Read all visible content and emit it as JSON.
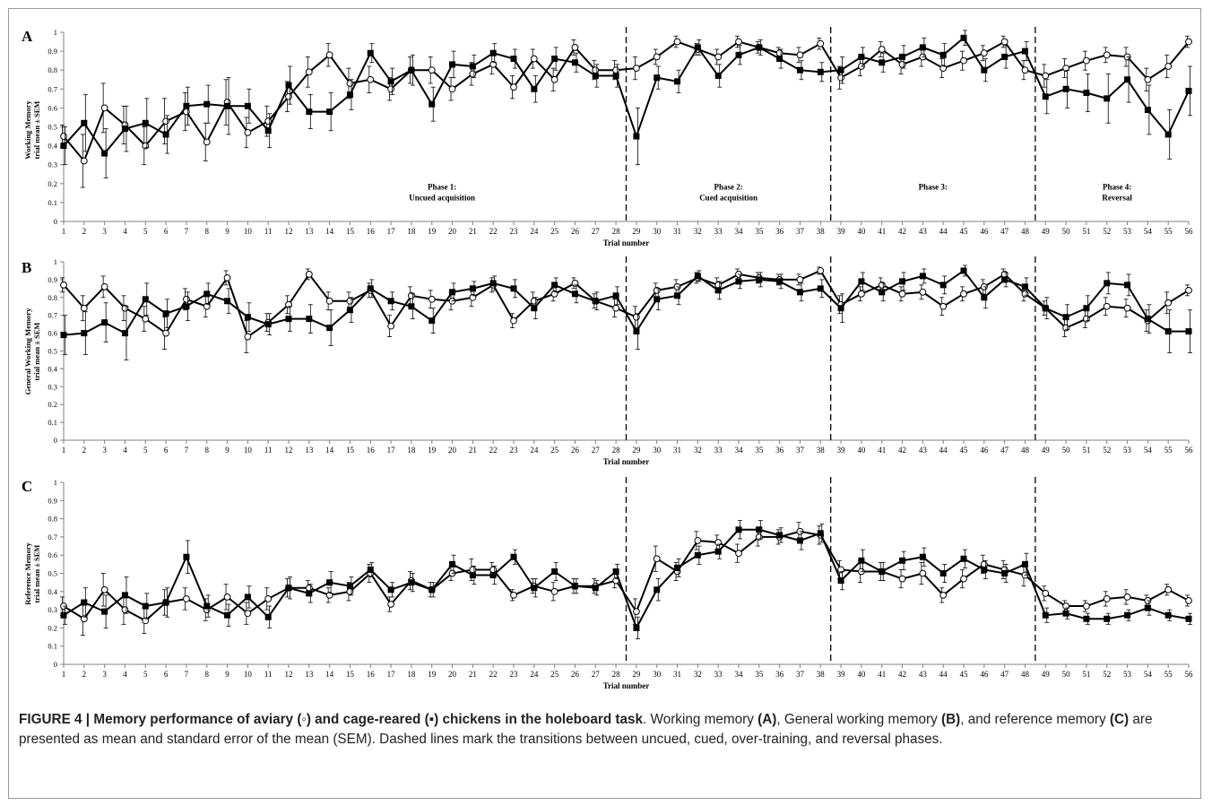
{
  "caption": {
    "figure_label": "FIGURE 4 | Memory performance of aviary (◦) and cage-reared (▪) chickens in the holeboard task",
    "t1": ". Working memory ",
    "r1": "(A)",
    "t2": ", General working memory ",
    "r2": "(B)",
    "t3": ", and reference memory ",
    "r3": "(C)",
    "t4": " are presented as mean and standard error of the mean (SEM). Dashed lines mark the transitions between uncued, cued, over-training, and reversal phases."
  },
  "colors": {
    "lines": "#000000",
    "axis": "#808080",
    "open_marker_fill": "#ffffff",
    "frame": "#9a9a9a"
  },
  "chart_data": [
    {
      "type": "line",
      "panel": "A",
      "ylabel_lines": [
        "Working Memory",
        "trial mean ± SEM"
      ],
      "xlabel": "Trial number",
      "ylim": [
        0,
        1
      ],
      "yticks": [
        "0",
        "0.1",
        "0.2",
        "0.3",
        "0.4",
        "0.5",
        "0.6",
        "0.7",
        "0.8",
        "0.9",
        "1"
      ],
      "x": [
        1,
        2,
        3,
        4,
        5,
        6,
        7,
        8,
        9,
        10,
        11,
        12,
        13,
        14,
        15,
        16,
        17,
        18,
        19,
        20,
        21,
        22,
        23,
        24,
        25,
        26,
        27,
        28,
        29,
        30,
        31,
        32,
        33,
        34,
        35,
        36,
        37,
        38,
        39,
        40,
        41,
        42,
        43,
        44,
        45,
        46,
        47,
        48,
        49,
        50,
        51,
        52,
        53,
        54,
        55,
        56
      ],
      "phase_boundaries": [
        28.5,
        38.5,
        48.5
      ],
      "phase_labels": [
        {
          "x": 19.5,
          "lines": [
            "Phase 1:",
            "Uncued acquisition"
          ]
        },
        {
          "x": 33.5,
          "lines": [
            "Phase 2:",
            "Cued acquisition"
          ]
        },
        {
          "x": 43.5,
          "lines": [
            "Phase 3:"
          ]
        },
        {
          "x": 52.5,
          "lines": [
            "Phase 4:",
            "Reversal"
          ]
        }
      ],
      "series": [
        {
          "marker": "open-circle",
          "values": [
            0.45,
            0.32,
            0.6,
            0.51,
            0.4,
            0.53,
            0.58,
            0.42,
            0.63,
            0.47,
            0.53,
            0.66,
            0.79,
            0.88,
            0.73,
            0.75,
            0.7,
            0.8,
            0.8,
            0.7,
            0.78,
            0.83,
            0.71,
            0.86,
            0.75,
            0.92,
            0.8,
            0.8,
            0.81,
            0.87,
            0.95,
            0.91,
            0.87,
            0.95,
            0.92,
            0.89,
            0.88,
            0.94,
            0.76,
            0.82,
            0.91,
            0.83,
            0.87,
            0.81,
            0.85,
            0.89,
            0.95,
            0.8,
            0.77,
            0.81,
            0.85,
            0.88,
            0.87,
            0.75,
            0.82,
            0.95
          ],
          "sem": [
            0.06,
            0.14,
            0.13,
            0.1,
            0.1,
            0.12,
            0.1,
            0.1,
            0.12,
            0.08,
            0.08,
            0.08,
            0.08,
            0.06,
            0.08,
            0.07,
            0.06,
            0.07,
            0.07,
            0.06,
            0.06,
            0.05,
            0.06,
            0.05,
            0.06,
            0.04,
            0.05,
            0.05,
            0.06,
            0.04,
            0.03,
            0.03,
            0.04,
            0.03,
            0.03,
            0.03,
            0.04,
            0.03,
            0.06,
            0.05,
            0.04,
            0.05,
            0.05,
            0.05,
            0.05,
            0.04,
            0.03,
            0.05,
            0.06,
            0.05,
            0.05,
            0.04,
            0.05,
            0.06,
            0.06,
            0.03
          ]
        },
        {
          "marker": "filled-square",
          "values": [
            0.4,
            0.52,
            0.36,
            0.49,
            0.52,
            0.46,
            0.61,
            0.62,
            0.61,
            0.61,
            0.48,
            0.72,
            0.58,
            0.58,
            0.67,
            0.89,
            0.74,
            0.8,
            0.62,
            0.83,
            0.82,
            0.89,
            0.86,
            0.7,
            0.86,
            0.84,
            0.77,
            0.77,
            0.45,
            0.76,
            0.74,
            0.92,
            0.77,
            0.88,
            0.92,
            0.86,
            0.8,
            0.79,
            0.8,
            0.87,
            0.84,
            0.87,
            0.92,
            0.88,
            0.97,
            0.8,
            0.87,
            0.9,
            0.66,
            0.7,
            0.68,
            0.65,
            0.75,
            0.59,
            0.46,
            0.69
          ],
          "sem": [
            0.1,
            0.15,
            0.13,
            0.12,
            0.13,
            0.1,
            0.1,
            0.1,
            0.15,
            0.09,
            0.09,
            0.1,
            0.09,
            0.1,
            0.08,
            0.05,
            0.07,
            0.08,
            0.09,
            0.07,
            0.06,
            0.05,
            0.05,
            0.07,
            0.06,
            0.05,
            0.06,
            0.06,
            0.15,
            0.06,
            0.06,
            0.04,
            0.06,
            0.05,
            0.04,
            0.05,
            0.05,
            0.05,
            0.07,
            0.05,
            0.05,
            0.06,
            0.05,
            0.06,
            0.04,
            0.06,
            0.06,
            0.05,
            0.09,
            0.1,
            0.1,
            0.13,
            0.12,
            0.13,
            0.13,
            0.13
          ]
        }
      ]
    },
    {
      "type": "line",
      "panel": "B",
      "ylabel_lines": [
        "General Working Memory",
        "trial mean ± SEM"
      ],
      "xlabel": "Trial number",
      "ylim": [
        0,
        1
      ],
      "yticks": [
        "0",
        "0.1",
        "0.2",
        "0.3",
        "0.4",
        "0.5",
        "0.6",
        "0.7",
        "0.8",
        "0.9",
        "1"
      ],
      "x": [
        1,
        2,
        3,
        4,
        5,
        6,
        7,
        8,
        9,
        10,
        11,
        12,
        13,
        14,
        15,
        16,
        17,
        18,
        19,
        20,
        21,
        22,
        23,
        24,
        25,
        26,
        27,
        28,
        29,
        30,
        31,
        32,
        33,
        34,
        35,
        36,
        37,
        38,
        39,
        40,
        41,
        42,
        43,
        44,
        45,
        46,
        47,
        48,
        49,
        50,
        51,
        52,
        53,
        54,
        55,
        56
      ],
      "phase_boundaries": [
        28.5,
        38.5,
        48.5
      ],
      "phase_labels": [],
      "series": [
        {
          "marker": "open-circle",
          "values": [
            0.87,
            0.74,
            0.86,
            0.74,
            0.68,
            0.6,
            0.79,
            0.75,
            0.91,
            0.58,
            0.66,
            0.76,
            0.93,
            0.78,
            0.78,
            0.84,
            0.64,
            0.81,
            0.79,
            0.78,
            0.8,
            0.87,
            0.67,
            0.78,
            0.82,
            0.88,
            0.78,
            0.74,
            0.69,
            0.84,
            0.86,
            0.91,
            0.87,
            0.93,
            0.91,
            0.9,
            0.9,
            0.95,
            0.76,
            0.82,
            0.87,
            0.82,
            0.83,
            0.75,
            0.82,
            0.86,
            0.93,
            0.82,
            0.74,
            0.63,
            0.68,
            0.75,
            0.74,
            0.67,
            0.77,
            0.84
          ],
          "sem": [
            0.04,
            0.07,
            0.06,
            0.07,
            0.07,
            0.09,
            0.06,
            0.06,
            0.04,
            0.09,
            0.05,
            0.05,
            0.03,
            0.05,
            0.05,
            0.04,
            0.06,
            0.05,
            0.05,
            0.05,
            0.05,
            0.04,
            0.04,
            0.05,
            0.04,
            0.03,
            0.04,
            0.05,
            0.06,
            0.04,
            0.04,
            0.03,
            0.04,
            0.03,
            0.03,
            0.03,
            0.03,
            0.02,
            0.05,
            0.04,
            0.04,
            0.04,
            0.04,
            0.05,
            0.04,
            0.04,
            0.03,
            0.04,
            0.04,
            0.05,
            0.05,
            0.05,
            0.05,
            0.06,
            0.06,
            0.03
          ]
        },
        {
          "marker": "filled-square",
          "values": [
            0.59,
            0.6,
            0.66,
            0.6,
            0.79,
            0.71,
            0.75,
            0.82,
            0.78,
            0.69,
            0.65,
            0.68,
            0.68,
            0.63,
            0.73,
            0.85,
            0.78,
            0.75,
            0.67,
            0.83,
            0.85,
            0.88,
            0.85,
            0.74,
            0.87,
            0.82,
            0.78,
            0.81,
            0.61,
            0.79,
            0.81,
            0.92,
            0.84,
            0.89,
            0.9,
            0.89,
            0.83,
            0.85,
            0.74,
            0.89,
            0.83,
            0.89,
            0.92,
            0.87,
            0.95,
            0.8,
            0.9,
            0.86,
            0.74,
            0.69,
            0.74,
            0.88,
            0.87,
            0.68,
            0.61,
            0.61
          ],
          "sem": [
            0.11,
            0.12,
            0.11,
            0.15,
            0.09,
            0.08,
            0.08,
            0.06,
            0.07,
            0.08,
            0.06,
            0.07,
            0.08,
            0.1,
            0.07,
            0.05,
            0.05,
            0.07,
            0.07,
            0.05,
            0.04,
            0.04,
            0.05,
            0.06,
            0.04,
            0.05,
            0.05,
            0.05,
            0.1,
            0.06,
            0.05,
            0.03,
            0.05,
            0.04,
            0.04,
            0.04,
            0.05,
            0.05,
            0.08,
            0.05,
            0.05,
            0.05,
            0.04,
            0.05,
            0.03,
            0.06,
            0.04,
            0.05,
            0.06,
            0.07,
            0.07,
            0.06,
            0.06,
            0.08,
            0.12,
            0.12
          ]
        }
      ]
    },
    {
      "type": "line",
      "panel": "C",
      "ylabel_lines": [
        "Reference Memory",
        "trial mean ± SEM"
      ],
      "xlabel": "Trial number",
      "ylim": [
        0,
        1
      ],
      "yticks": [
        "0",
        "0.1",
        "0.2",
        "0.3",
        "0.4",
        "0.5",
        "0.6",
        "0.7",
        "0.8",
        "0.9",
        "1"
      ],
      "x": [
        1,
        2,
        3,
        4,
        5,
        6,
        7,
        8,
        9,
        10,
        11,
        12,
        13,
        14,
        15,
        16,
        17,
        18,
        19,
        20,
        21,
        22,
        23,
        24,
        25,
        26,
        27,
        28,
        29,
        30,
        31,
        32,
        33,
        34,
        35,
        36,
        37,
        38,
        39,
        40,
        41,
        42,
        43,
        44,
        45,
        46,
        47,
        48,
        49,
        50,
        51,
        52,
        53,
        54,
        55,
        56
      ],
      "phase_boundaries": [
        28.5,
        38.5,
        48.5
      ],
      "phase_labels": [],
      "series": [
        {
          "marker": "open-circle",
          "values": [
            0.32,
            0.25,
            0.41,
            0.3,
            0.24,
            0.34,
            0.36,
            0.3,
            0.37,
            0.28,
            0.36,
            0.42,
            0.42,
            0.38,
            0.4,
            0.5,
            0.33,
            0.46,
            0.41,
            0.5,
            0.52,
            0.52,
            0.38,
            0.43,
            0.4,
            0.43,
            0.43,
            0.46,
            0.29,
            0.58,
            0.51,
            0.68,
            0.67,
            0.61,
            0.7,
            0.7,
            0.73,
            0.71,
            0.52,
            0.51,
            0.51,
            0.47,
            0.5,
            0.38,
            0.47,
            0.55,
            0.52,
            0.49,
            0.39,
            0.32,
            0.32,
            0.36,
            0.37,
            0.35,
            0.41,
            0.35
          ],
          "sem": [
            0.05,
            0.09,
            0.09,
            0.08,
            0.07,
            0.07,
            0.06,
            0.06,
            0.07,
            0.06,
            0.06,
            0.05,
            0.04,
            0.04,
            0.05,
            0.05,
            0.04,
            0.05,
            0.04,
            0.04,
            0.06,
            0.04,
            0.03,
            0.04,
            0.05,
            0.04,
            0.04,
            0.04,
            0.07,
            0.07,
            0.05,
            0.05,
            0.04,
            0.05,
            0.05,
            0.04,
            0.05,
            0.05,
            0.05,
            0.06,
            0.05,
            0.05,
            0.06,
            0.04,
            0.05,
            0.05,
            0.05,
            0.06,
            0.04,
            0.03,
            0.03,
            0.04,
            0.04,
            0.03,
            0.03,
            0.03
          ]
        },
        {
          "marker": "filled-square",
          "values": [
            0.27,
            0.34,
            0.29,
            0.38,
            0.32,
            0.34,
            0.59,
            0.32,
            0.27,
            0.37,
            0.26,
            0.42,
            0.39,
            0.45,
            0.43,
            0.52,
            0.41,
            0.45,
            0.41,
            0.55,
            0.49,
            0.49,
            0.59,
            0.42,
            0.51,
            0.43,
            0.42,
            0.51,
            0.2,
            0.41,
            0.53,
            0.6,
            0.62,
            0.74,
            0.74,
            0.71,
            0.68,
            0.72,
            0.46,
            0.57,
            0.51,
            0.57,
            0.59,
            0.5,
            0.58,
            0.52,
            0.5,
            0.55,
            0.27,
            0.28,
            0.25,
            0.25,
            0.27,
            0.31,
            0.27,
            0.25
          ],
          "sem": [
            0.05,
            0.08,
            0.09,
            0.1,
            0.07,
            0.08,
            0.09,
            0.06,
            0.06,
            0.06,
            0.06,
            0.06,
            0.05,
            0.06,
            0.05,
            0.04,
            0.04,
            0.05,
            0.04,
            0.05,
            0.05,
            0.05,
            0.04,
            0.05,
            0.05,
            0.04,
            0.04,
            0.04,
            0.06,
            0.06,
            0.05,
            0.05,
            0.04,
            0.05,
            0.05,
            0.04,
            0.05,
            0.05,
            0.05,
            0.06,
            0.05,
            0.05,
            0.05,
            0.05,
            0.05,
            0.05,
            0.05,
            0.06,
            0.04,
            0.03,
            0.03,
            0.03,
            0.03,
            0.04,
            0.03,
            0.03
          ]
        }
      ]
    }
  ]
}
